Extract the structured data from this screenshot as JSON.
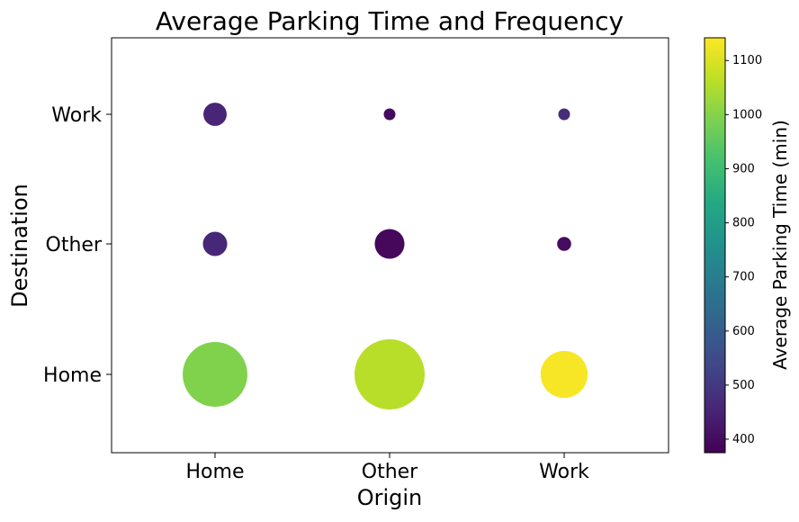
{
  "chart_data": {
    "type": "scatter",
    "title": "Average Parking Time and Frequency",
    "xlabel": "Origin",
    "ylabel": "Destination",
    "x_categories": [
      "Home",
      "Other",
      "Work"
    ],
    "y_categories": [
      "Home",
      "Other",
      "Work"
    ],
    "points": [
      {
        "x": "Home",
        "y": "Home",
        "avg_parking_time": 995,
        "relative_size": 0.85
      },
      {
        "x": "Other",
        "y": "Home",
        "avg_parking_time": 1060,
        "relative_size": 1.0
      },
      {
        "x": "Work",
        "y": "Home",
        "avg_parking_time": 1135,
        "relative_size": 0.45
      },
      {
        "x": "Home",
        "y": "Other",
        "avg_parking_time": 460,
        "relative_size": 0.12
      },
      {
        "x": "Other",
        "y": "Other",
        "avg_parking_time": 390,
        "relative_size": 0.18
      },
      {
        "x": "Work",
        "y": "Other",
        "avg_parking_time": 400,
        "relative_size": 0.04
      },
      {
        "x": "Home",
        "y": "Work",
        "avg_parking_time": 455,
        "relative_size": 0.11
      },
      {
        "x": "Other",
        "y": "Work",
        "avg_parking_time": 395,
        "relative_size": 0.02
      },
      {
        "x": "Work",
        "y": "Work",
        "avg_parking_time": 470,
        "relative_size": 0.01
      }
    ],
    "colorbar": {
      "label": "Average Parking Time (min)",
      "range": [
        375,
        1142
      ],
      "ticks": [
        400,
        500,
        600,
        700,
        800,
        900,
        1000,
        1100
      ],
      "colormap": "viridis"
    },
    "grid": false
  }
}
